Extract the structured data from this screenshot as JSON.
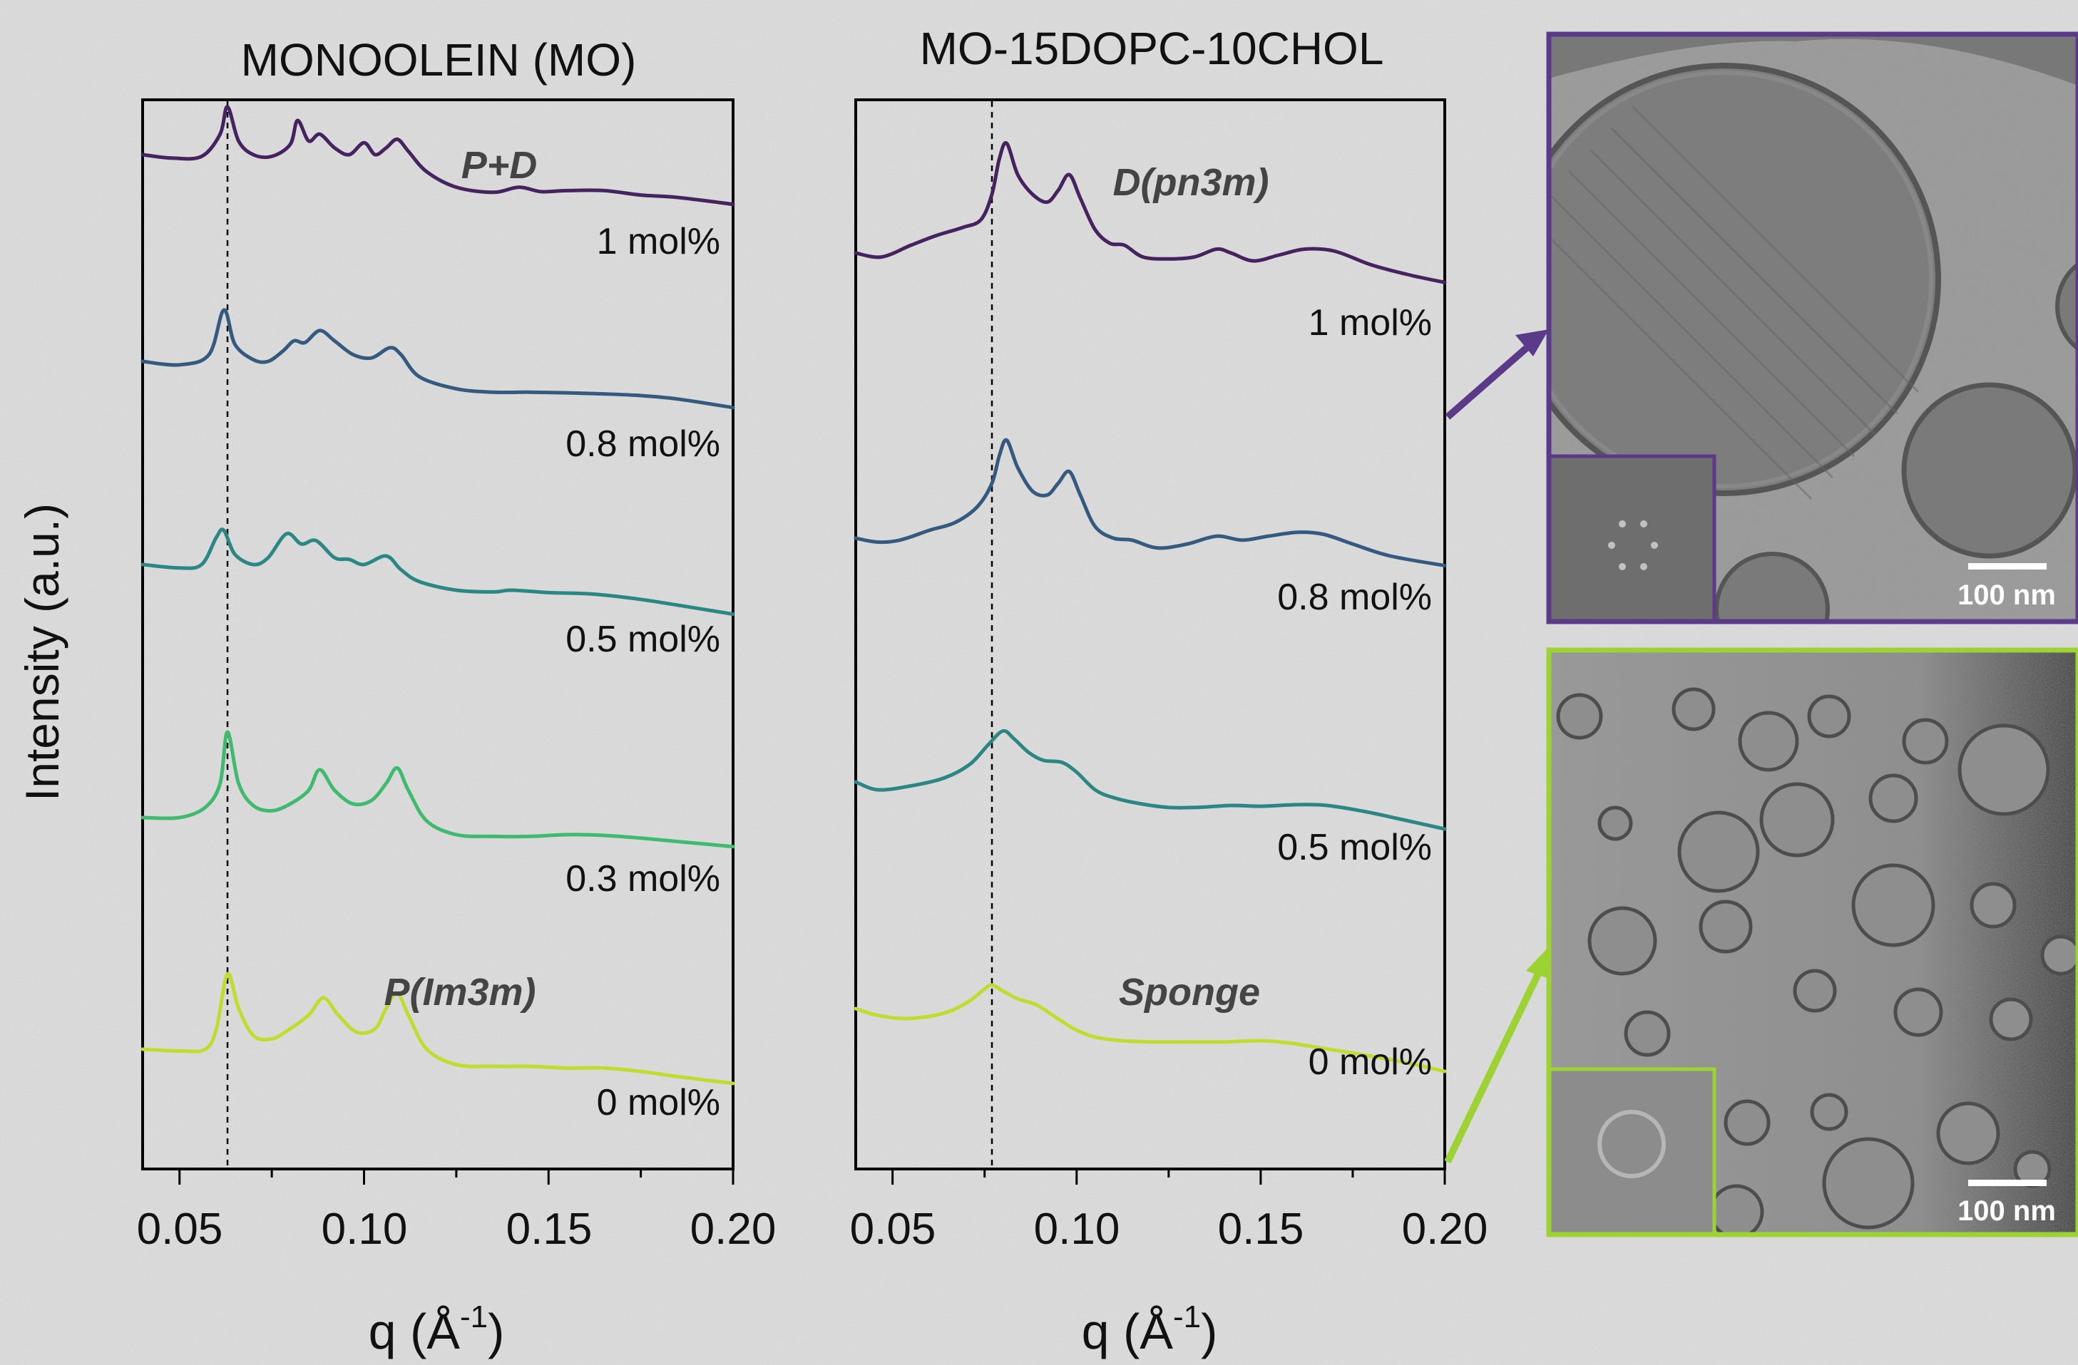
{
  "colors": {
    "c1": "#45235f",
    "c08": "#355a7f",
    "c05": "#2a8784",
    "c03": "#3fba6e",
    "c0": "#bedd2e",
    "background": "#dcdcdc"
  },
  "ylabel": "Intensity (a.u.)",
  "chart_data": [
    {
      "type": "line",
      "title": "MONOOLEIN (MO)",
      "xlabel_main": "q (Å",
      "xlabel_sup": "-1",
      "xlabel_close": ")",
      "ylabel": "Intensity (a.u.)",
      "xlim": [
        0.04,
        0.2
      ],
      "xticks": [
        "0.05",
        "0.10",
        "0.15",
        "0.20"
      ],
      "reference_line_q": 0.063,
      "phase_labels": [
        {
          "text": "P+D",
          "q": 0.102,
          "level": 0
        },
        {
          "text": "P(Im3m)",
          "q": 0.092,
          "level": 4
        }
      ],
      "series": [
        {
          "name": "1 mol%",
          "color": "#45235f",
          "points": [
            [
              0.04,
              1.0
            ],
            [
              0.048,
              0.9
            ],
            [
              0.056,
              0.95
            ],
            [
              0.061,
              1.6
            ],
            [
              0.063,
              2.4
            ],
            [
              0.066,
              1.4
            ],
            [
              0.07,
              1.0
            ],
            [
              0.075,
              0.95
            ],
            [
              0.08,
              1.3
            ],
            [
              0.082,
              2.0
            ],
            [
              0.085,
              1.4
            ],
            [
              0.088,
              1.6
            ],
            [
              0.092,
              1.2
            ],
            [
              0.096,
              1.0
            ],
            [
              0.1,
              1.35
            ],
            [
              0.103,
              1.0
            ],
            [
              0.106,
              1.2
            ],
            [
              0.109,
              1.45
            ],
            [
              0.112,
              1.1
            ],
            [
              0.117,
              0.5
            ],
            [
              0.125,
              0.05
            ],
            [
              0.135,
              -0.1
            ],
            [
              0.142,
              0.05
            ],
            [
              0.148,
              -0.08
            ],
            [
              0.155,
              -0.05
            ],
            [
              0.165,
              -0.05
            ],
            [
              0.175,
              -0.18
            ],
            [
              0.185,
              -0.25
            ],
            [
              0.2,
              -0.45
            ]
          ]
        },
        {
          "name": "0.8 mol%",
          "color": "#355a7f",
          "points": [
            [
              0.04,
              1.0
            ],
            [
              0.05,
              0.9
            ],
            [
              0.058,
              1.2
            ],
            [
              0.062,
              2.5
            ],
            [
              0.065,
              1.5
            ],
            [
              0.07,
              1.05
            ],
            [
              0.074,
              1.0
            ],
            [
              0.078,
              1.3
            ],
            [
              0.081,
              1.6
            ],
            [
              0.084,
              1.55
            ],
            [
              0.088,
              1.9
            ],
            [
              0.092,
              1.6
            ],
            [
              0.097,
              1.2
            ],
            [
              0.102,
              1.1
            ],
            [
              0.107,
              1.4
            ],
            [
              0.11,
              1.2
            ],
            [
              0.115,
              0.55
            ],
            [
              0.125,
              0.2
            ],
            [
              0.135,
              0.1
            ],
            [
              0.145,
              0.1
            ],
            [
              0.155,
              0.08
            ],
            [
              0.165,
              0.05
            ],
            [
              0.175,
              0.0
            ],
            [
              0.185,
              -0.1
            ],
            [
              0.2,
              -0.35
            ]
          ]
        },
        {
          "name": "0.5 mol%",
          "color": "#2a8784",
          "points": [
            [
              0.04,
              1.0
            ],
            [
              0.05,
              0.9
            ],
            [
              0.056,
              1.0
            ],
            [
              0.06,
              1.8
            ],
            [
              0.062,
              2.0
            ],
            [
              0.065,
              1.3
            ],
            [
              0.07,
              1.0
            ],
            [
              0.074,
              1.2
            ],
            [
              0.079,
              1.9
            ],
            [
              0.083,
              1.6
            ],
            [
              0.087,
              1.7
            ],
            [
              0.092,
              1.2
            ],
            [
              0.096,
              1.15
            ],
            [
              0.1,
              1.0
            ],
            [
              0.106,
              1.25
            ],
            [
              0.11,
              0.85
            ],
            [
              0.115,
              0.5
            ],
            [
              0.125,
              0.25
            ],
            [
              0.135,
              0.2
            ],
            [
              0.14,
              0.25
            ],
            [
              0.15,
              0.18
            ],
            [
              0.16,
              0.15
            ],
            [
              0.17,
              0.05
            ],
            [
              0.18,
              -0.1
            ],
            [
              0.2,
              -0.45
            ]
          ]
        },
        {
          "name": "0.3 mol%",
          "color": "#3fba6e",
          "points": [
            [
              0.04,
              1.0
            ],
            [
              0.05,
              1.0
            ],
            [
              0.057,
              1.3
            ],
            [
              0.061,
              2.0
            ],
            [
              0.063,
              3.5
            ],
            [
              0.066,
              2.0
            ],
            [
              0.07,
              1.35
            ],
            [
              0.075,
              1.2
            ],
            [
              0.08,
              1.4
            ],
            [
              0.085,
              1.8
            ],
            [
              0.088,
              2.4
            ],
            [
              0.092,
              1.8
            ],
            [
              0.097,
              1.4
            ],
            [
              0.102,
              1.5
            ],
            [
              0.106,
              2.0
            ],
            [
              0.109,
              2.45
            ],
            [
              0.112,
              1.8
            ],
            [
              0.117,
              0.9
            ],
            [
              0.125,
              0.5
            ],
            [
              0.135,
              0.45
            ],
            [
              0.145,
              0.45
            ],
            [
              0.155,
              0.5
            ],
            [
              0.165,
              0.48
            ],
            [
              0.175,
              0.4
            ],
            [
              0.185,
              0.3
            ],
            [
              0.2,
              0.15
            ]
          ]
        },
        {
          "name": "0 mol%",
          "color": "#bedd2e",
          "points": [
            [
              0.04,
              1.0
            ],
            [
              0.05,
              0.95
            ],
            [
              0.057,
              1.0
            ],
            [
              0.06,
              1.6
            ],
            [
              0.063,
              3.2
            ],
            [
              0.066,
              2.2
            ],
            [
              0.07,
              1.4
            ],
            [
              0.075,
              1.3
            ],
            [
              0.08,
              1.6
            ],
            [
              0.085,
              2.0
            ],
            [
              0.089,
              2.5
            ],
            [
              0.093,
              2.0
            ],
            [
              0.098,
              1.5
            ],
            [
              0.103,
              1.6
            ],
            [
              0.106,
              2.2
            ],
            [
              0.109,
              2.65
            ],
            [
              0.112,
              2.0
            ],
            [
              0.117,
              1.0
            ],
            [
              0.125,
              0.55
            ],
            [
              0.135,
              0.5
            ],
            [
              0.145,
              0.5
            ],
            [
              0.155,
              0.45
            ],
            [
              0.165,
              0.45
            ],
            [
              0.175,
              0.35
            ],
            [
              0.185,
              0.2
            ],
            [
              0.2,
              0.0
            ]
          ]
        }
      ]
    },
    {
      "type": "line",
      "title": "MO-15DOPC-10CHOL",
      "xlabel_main": "q (Å",
      "xlabel_sup": "-1",
      "xlabel_close": ")",
      "xlim": [
        0.04,
        0.2
      ],
      "xticks": [
        "0.05",
        "0.10",
        "0.15",
        "0.20"
      ],
      "reference_line_q": 0.077,
      "phase_labels": [
        {
          "text": "D(pn3m)",
          "q": 0.1105,
          "level": 0
        },
        {
          "text": "Sponge",
          "q": 0.1115,
          "level": 3
        }
      ],
      "series": [
        {
          "name": "1 mol%",
          "color": "#45235f",
          "points": [
            [
              0.04,
              1.0
            ],
            [
              0.047,
              0.9
            ],
            [
              0.055,
              1.2
            ],
            [
              0.062,
              1.45
            ],
            [
              0.069,
              1.65
            ],
            [
              0.074,
              1.85
            ],
            [
              0.077,
              2.5
            ],
            [
              0.079,
              3.4
            ],
            [
              0.081,
              3.8
            ],
            [
              0.084,
              3.0
            ],
            [
              0.088,
              2.5
            ],
            [
              0.092,
              2.3
            ],
            [
              0.095,
              2.6
            ],
            [
              0.098,
              3.0
            ],
            [
              0.101,
              2.4
            ],
            [
              0.105,
              1.6
            ],
            [
              0.109,
              1.25
            ],
            [
              0.113,
              1.2
            ],
            [
              0.118,
              0.9
            ],
            [
              0.125,
              0.85
            ],
            [
              0.132,
              0.9
            ],
            [
              0.138,
              1.1
            ],
            [
              0.142,
              1.0
            ],
            [
              0.148,
              0.8
            ],
            [
              0.155,
              0.95
            ],
            [
              0.162,
              1.1
            ],
            [
              0.17,
              1.05
            ],
            [
              0.18,
              0.7
            ],
            [
              0.19,
              0.45
            ],
            [
              0.2,
              0.25
            ]
          ]
        },
        {
          "name": "0.8 mol%",
          "color": "#355a7f",
          "points": [
            [
              0.04,
              1.0
            ],
            [
              0.046,
              0.9
            ],
            [
              0.052,
              0.95
            ],
            [
              0.06,
              1.2
            ],
            [
              0.067,
              1.4
            ],
            [
              0.073,
              1.8
            ],
            [
              0.077,
              2.4
            ],
            [
              0.079,
              3.1
            ],
            [
              0.081,
              3.5
            ],
            [
              0.084,
              2.8
            ],
            [
              0.088,
              2.2
            ],
            [
              0.092,
              2.1
            ],
            [
              0.095,
              2.4
            ],
            [
              0.098,
              2.7
            ],
            [
              0.101,
              2.1
            ],
            [
              0.105,
              1.3
            ],
            [
              0.11,
              1.0
            ],
            [
              0.115,
              0.95
            ],
            [
              0.122,
              0.75
            ],
            [
              0.13,
              0.85
            ],
            [
              0.138,
              1.05
            ],
            [
              0.145,
              0.95
            ],
            [
              0.152,
              1.05
            ],
            [
              0.16,
              1.15
            ],
            [
              0.167,
              1.1
            ],
            [
              0.175,
              0.85
            ],
            [
              0.185,
              0.55
            ],
            [
              0.2,
              0.3
            ]
          ]
        },
        {
          "name": "0.5 mol%",
          "color": "#2a8784",
          "points": [
            [
              0.04,
              1.0
            ],
            [
              0.046,
              0.8
            ],
            [
              0.055,
              0.9
            ],
            [
              0.064,
              1.1
            ],
            [
              0.071,
              1.45
            ],
            [
              0.076,
              1.95
            ],
            [
              0.08,
              2.3
            ],
            [
              0.083,
              2.1
            ],
            [
              0.087,
              1.75
            ],
            [
              0.091,
              1.55
            ],
            [
              0.096,
              1.5
            ],
            [
              0.1,
              1.25
            ],
            [
              0.105,
              0.8
            ],
            [
              0.11,
              0.6
            ],
            [
              0.117,
              0.45
            ],
            [
              0.125,
              0.35
            ],
            [
              0.133,
              0.35
            ],
            [
              0.142,
              0.4
            ],
            [
              0.15,
              0.38
            ],
            [
              0.16,
              0.42
            ],
            [
              0.168,
              0.4
            ],
            [
              0.178,
              0.25
            ],
            [
              0.188,
              0.05
            ],
            [
              0.2,
              -0.2
            ]
          ]
        },
        {
          "name": "0 mol%",
          "color": "#bedd2e",
          "points": [
            [
              0.04,
              1.0
            ],
            [
              0.045,
              0.85
            ],
            [
              0.052,
              0.75
            ],
            [
              0.06,
              0.8
            ],
            [
              0.066,
              0.95
            ],
            [
              0.071,
              1.2
            ],
            [
              0.075,
              1.5
            ],
            [
              0.077,
              1.6
            ],
            [
              0.08,
              1.45
            ],
            [
              0.084,
              1.25
            ],
            [
              0.089,
              1.1
            ],
            [
              0.094,
              0.8
            ],
            [
              0.099,
              0.5
            ],
            [
              0.104,
              0.3
            ],
            [
              0.11,
              0.2
            ],
            [
              0.12,
              0.15
            ],
            [
              0.13,
              0.15
            ],
            [
              0.14,
              0.15
            ],
            [
              0.15,
              0.18
            ],
            [
              0.158,
              0.12
            ],
            [
              0.166,
              0.0
            ],
            [
              0.176,
              -0.15
            ],
            [
              0.188,
              -0.35
            ],
            [
              0.2,
              -0.6
            ]
          ]
        }
      ]
    }
  ],
  "micrographs": [
    {
      "scale_label": "100 nm",
      "border_color": "#5b3a8a",
      "linked_series": "1 mol%"
    },
    {
      "scale_label": "100 nm",
      "border_color": "#9dd233",
      "linked_series": "0 mol%"
    }
  ]
}
